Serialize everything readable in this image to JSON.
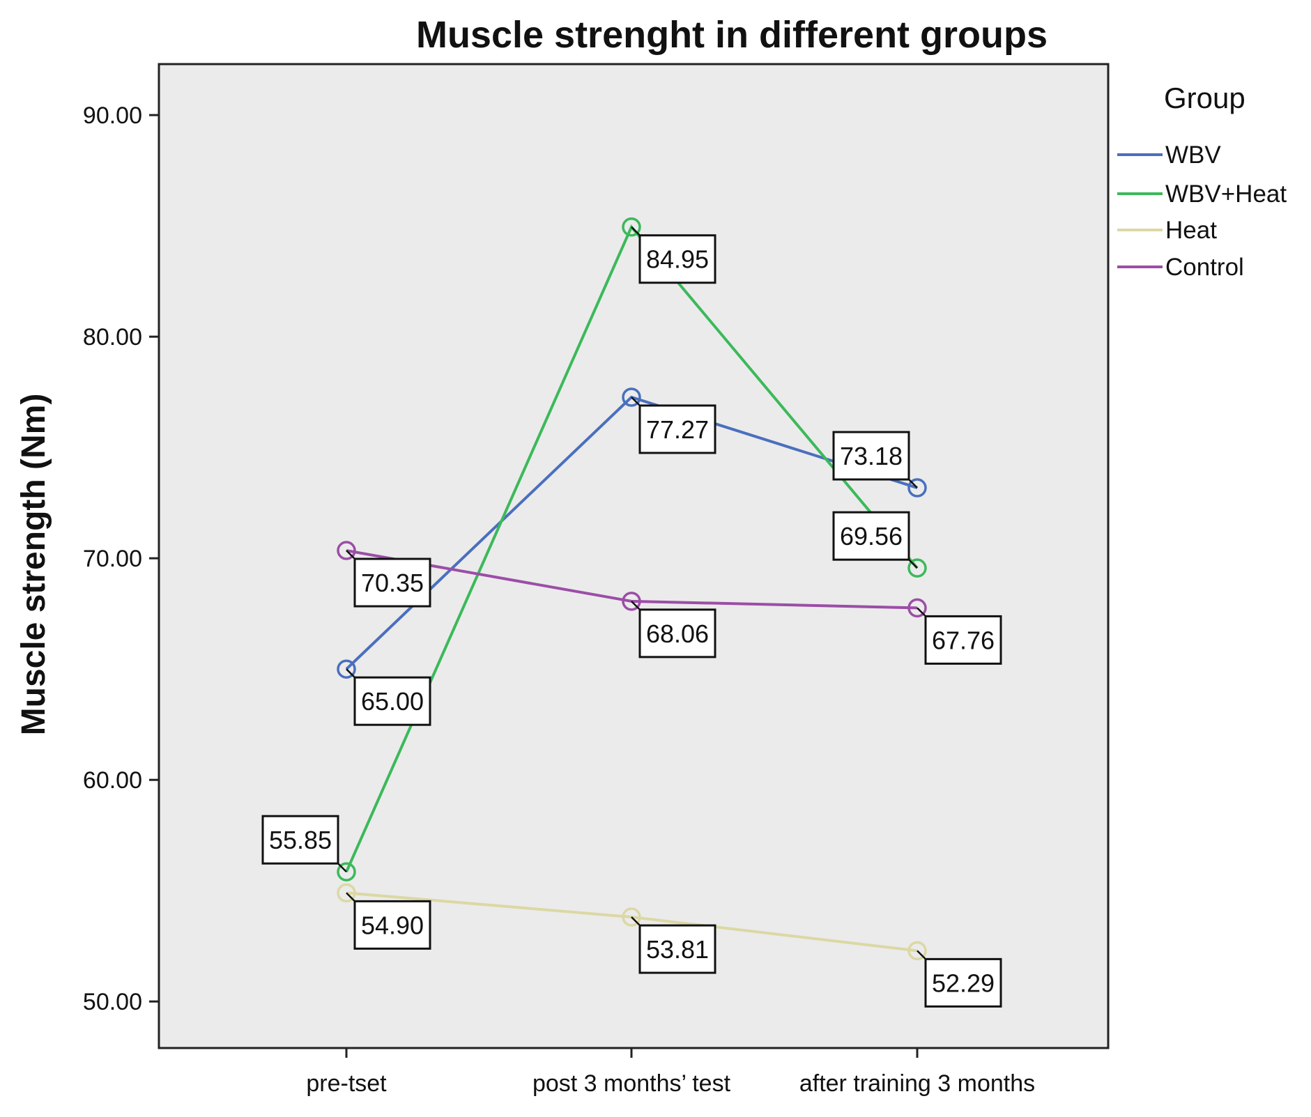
{
  "chart_data": {
    "type": "line",
    "title": "Muscle strenght in different groups",
    "xlabel": "",
    "ylabel": "Muscle strength (Nm)",
    "categories": [
      "pre-tset",
      "post 3 months’ test",
      "after training 3 months"
    ],
    "ylim": [
      47.9,
      92.3
    ],
    "yticks": [
      50,
      60,
      70,
      80,
      90
    ],
    "ytick_labels": [
      "50.00",
      "60.00",
      "70.00",
      "80.00",
      "90.00"
    ],
    "grid": false,
    "background": "#ebebeb",
    "legend": {
      "title": "Group",
      "position": "right"
    },
    "series": [
      {
        "name": "WBV",
        "color": "#4a6fbe",
        "values": [
          65.0,
          77.27,
          73.18
        ],
        "labels": [
          "65.00",
          "77.27",
          "73.18"
        ]
      },
      {
        "name": "WBV+Heat",
        "color": "#3cb95a",
        "values": [
          55.85,
          84.95,
          69.56
        ],
        "labels": [
          "55.85",
          "84.95",
          "69.56"
        ]
      },
      {
        "name": "Heat",
        "color": "#dcd8a4",
        "values": [
          54.9,
          53.81,
          52.29
        ],
        "labels": [
          "54.90",
          "53.81",
          "52.29"
        ]
      },
      {
        "name": "Control",
        "color": "#9b4ea6",
        "values": [
          70.35,
          68.06,
          67.76
        ],
        "labels": [
          "70.35",
          "68.06",
          "67.76"
        ]
      }
    ]
  }
}
